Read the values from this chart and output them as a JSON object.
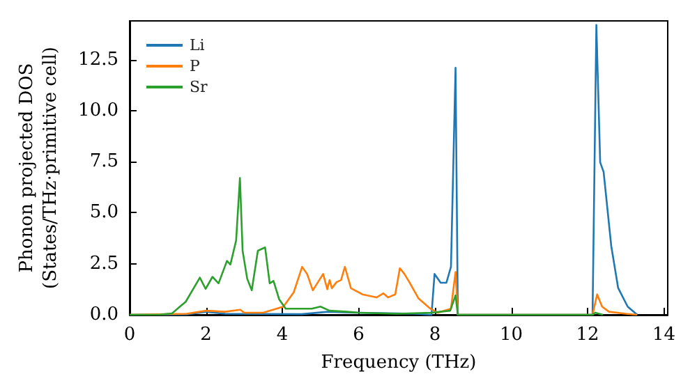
{
  "chart_data": {
    "type": "line",
    "xlabel": "Frequency (THz)",
    "ylabel": "Phonon projected DOS\n(States/THz·primitive cell)",
    "xlim": [
      0,
      14.1
    ],
    "ylim": [
      0,
      14.4
    ],
    "xticks": [
      0,
      2,
      4,
      6,
      8,
      10,
      12,
      14
    ],
    "yticks": [
      {
        "value": 0,
        "label": "0.0"
      },
      {
        "value": 2.5,
        "label": "2.5"
      },
      {
        "value": 5,
        "label": "5.0"
      },
      {
        "value": 7.5,
        "label": "7.5"
      },
      {
        "value": 10,
        "label": "10.0"
      },
      {
        "value": 12.5,
        "label": "12.5"
      }
    ],
    "grid": false,
    "legend": "top left",
    "marker": "none",
    "line_style": "solid",
    "series": [
      {
        "name": "Li",
        "color": "#1f77b4",
        "x": [
          0,
          1.5,
          2.0,
          2.5,
          4.5,
          5.2,
          6.0,
          7.5,
          7.91,
          7.99,
          8.15,
          8.3,
          8.42,
          8.54,
          8.6,
          12.13,
          12.23,
          12.33,
          12.42,
          12.62,
          12.8,
          13.05,
          13.3
        ],
        "values": [
          0,
          0.02,
          0.15,
          0.05,
          0.03,
          0.15,
          0.1,
          0.05,
          0,
          2.0,
          1.57,
          1.57,
          2.35,
          12.1,
          0,
          0,
          14.2,
          7.47,
          7.0,
          3.37,
          1.32,
          0.4,
          0
        ]
      },
      {
        "name": "P",
        "color": "#ff7f0e",
        "x": [
          0,
          1.5,
          2.0,
          2.5,
          2.9,
          3.0,
          3.5,
          4.03,
          4.3,
          4.52,
          4.65,
          4.8,
          5.07,
          5.18,
          5.24,
          5.3,
          5.42,
          5.54,
          5.64,
          5.8,
          6.1,
          6.47,
          6.65,
          6.77,
          6.96,
          7.08,
          7.2,
          7.33,
          7.57,
          7.88,
          8.07,
          8.42,
          8.54,
          8.6,
          12.13,
          12.25,
          12.38,
          12.56,
          13.0,
          13.3
        ],
        "values": [
          0,
          0.05,
          0.2,
          0.15,
          0.25,
          0.1,
          0.1,
          0.4,
          1.1,
          2.35,
          2.0,
          1.2,
          2.0,
          1.25,
          1.7,
          1.3,
          1.6,
          1.7,
          2.35,
          1.3,
          1.0,
          0.85,
          1.05,
          0.85,
          1.0,
          2.28,
          2.0,
          1.6,
          0.8,
          0.3,
          0.1,
          0.3,
          2.1,
          0,
          0,
          1.0,
          0.4,
          0.15,
          0.05,
          0
        ]
      },
      {
        "name": "Sr",
        "color": "#2ca02c",
        "x": [
          0,
          0.8,
          1.11,
          1.47,
          1.84,
          1.99,
          2.17,
          2.33,
          2.55,
          2.64,
          2.79,
          2.89,
          2.96,
          3.08,
          3.2,
          3.36,
          3.55,
          3.67,
          3.77,
          3.92,
          4.09,
          4.4,
          4.77,
          5.0,
          5.24,
          5.7,
          6.0,
          7.0,
          7.9,
          8.4,
          8.54,
          8.6,
          12.13,
          12.2,
          12.4
        ],
        "values": [
          0,
          0.01,
          0.07,
          0.64,
          1.82,
          1.27,
          1.86,
          1.54,
          2.64,
          2.46,
          3.64,
          6.7,
          3.14,
          1.77,
          1.2,
          3.14,
          3.3,
          1.54,
          1.66,
          0.75,
          0.3,
          0.3,
          0.3,
          0.4,
          0.2,
          0.15,
          0.1,
          0.05,
          0.1,
          0.2,
          0.95,
          0,
          0,
          0.1,
          0
        ]
      }
    ]
  }
}
